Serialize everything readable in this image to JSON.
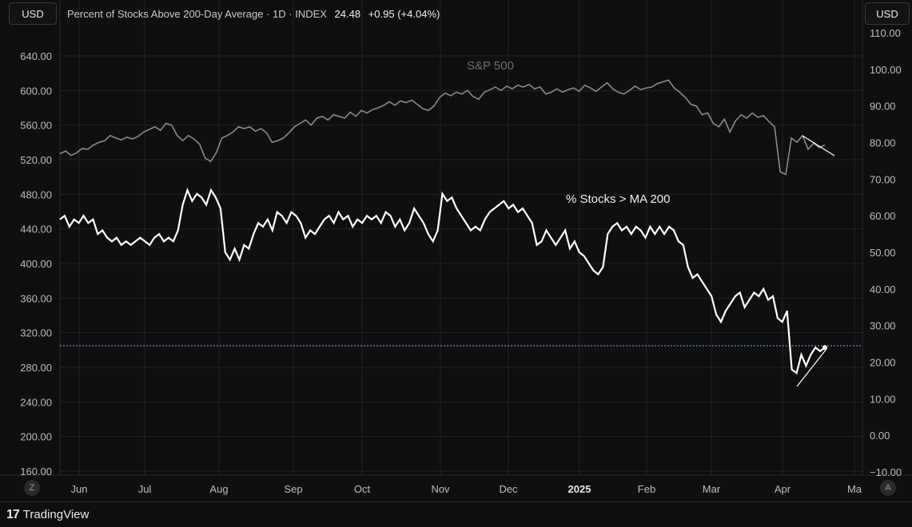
{
  "header": {
    "title": "Percent of Stocks Above 200-Day Average · 1D · INDEX",
    "value": "24.48",
    "change": "+0.95 (+4.04%)",
    "currency_left": "USD",
    "currency_right": "USD"
  },
  "controls": {
    "z_label": "Z",
    "a_label": "A"
  },
  "footer": {
    "brand": "TradingView",
    "brand_mark": "17"
  },
  "colors": {
    "background": "#0f0f0f",
    "grid": "#262626",
    "pct_line": "#ffffff",
    "spx_line": "#8a8a8a",
    "ref_line": "#5fb8d6"
  },
  "chart_data": {
    "type": "line",
    "x_labels": [
      "Jun",
      "Jul",
      "Aug",
      "Sep",
      "Oct",
      "Nov",
      "Dec",
      "2025",
      "Feb",
      "Mar",
      "Apr",
      "Ma"
    ],
    "left_axis": {
      "ticks": [
        "640.00",
        "600.00",
        "560.00",
        "520.00",
        "480.00",
        "440.00",
        "400.00",
        "360.00",
        "320.00",
        "280.00",
        "240.00",
        "200.00",
        "160.00"
      ],
      "range": [
        160,
        660
      ]
    },
    "right_axis": {
      "ticks": [
        "110.00",
        "100.00",
        "90.00",
        "80.00",
        "70.00",
        "60.00",
        "50.00",
        "40.00",
        "30.00",
        "20.00",
        "10.00",
        "0.00",
        "−10.00"
      ],
      "range": [
        -10,
        115
      ]
    },
    "series": [
      {
        "name": "S&P 500",
        "axis": "left",
        "values": [
          527,
          530,
          525,
          528,
          533,
          532,
          537,
          540,
          542,
          548,
          545,
          543,
          546,
          544,
          547,
          552,
          555,
          558,
          554,
          562,
          560,
          548,
          542,
          548,
          544,
          538,
          522,
          518,
          528,
          545,
          548,
          552,
          558,
          556,
          558,
          553,
          556,
          551,
          540,
          542,
          545,
          551,
          558,
          562,
          566,
          560,
          568,
          570,
          566,
          572,
          570,
          568,
          575,
          570,
          577,
          574,
          578,
          580,
          583,
          587,
          583,
          588,
          586,
          589,
          584,
          579,
          577,
          582,
          592,
          597,
          594,
          598,
          596,
          600,
          593,
          590,
          598,
          601,
          604,
          600,
          605,
          602,
          606,
          604,
          607,
          602,
          604,
          596,
          598,
          602,
          598,
          601,
          603,
          599,
          606,
          603,
          599,
          604,
          609,
          602,
          598,
          596,
          600,
          605,
          601,
          603,
          604,
          608,
          610,
          612,
          603,
          598,
          592,
          584,
          582,
          572,
          574,
          562,
          558,
          567,
          552,
          565,
          572,
          568,
          574,
          569,
          571,
          564,
          558,
          506,
          503,
          545,
          540,
          548,
          532,
          539,
          534,
          537
        ],
        "label": "S&P 500"
      },
      {
        "name": "% Stocks > MA 200",
        "axis": "right",
        "values": [
          59,
          60,
          57,
          59,
          58,
          60,
          58,
          59,
          55,
          56,
          54,
          53,
          54,
          52,
          53,
          52,
          53,
          54,
          53,
          52,
          54,
          55,
          53,
          54,
          53,
          56,
          63,
          67,
          64,
          66,
          65,
          63,
          67,
          65,
          62,
          50,
          48,
          51,
          48,
          52,
          51,
          55,
          58,
          57,
          59,
          56,
          61,
          60,
          58,
          61,
          60,
          58,
          54,
          56,
          55,
          57,
          59,
          60,
          58,
          61,
          59,
          60,
          57,
          59,
          58,
          60,
          59,
          60,
          58,
          61,
          60,
          57,
          59,
          56,
          58,
          62,
          60,
          58,
          55,
          53,
          56,
          66,
          64,
          65,
          62,
          60,
          58,
          56,
          57,
          56,
          59,
          61,
          62,
          63,
          64,
          62,
          63,
          61,
          62,
          60,
          58,
          52,
          53,
          56,
          54,
          52,
          54,
          56,
          51,
          53,
          50,
          49,
          47,
          45,
          44,
          46,
          55,
          57,
          58,
          56,
          57,
          55,
          57,
          56,
          54,
          57,
          55,
          57,
          55,
          57,
          56,
          53,
          52,
          46,
          43,
          44,
          42,
          40,
          38,
          33,
          31,
          34,
          36,
          38,
          39,
          35,
          37,
          39,
          38,
          40,
          37,
          38,
          32,
          31,
          34,
          18,
          17,
          22,
          19,
          22,
          24,
          23,
          24
        ]
      }
    ],
    "annotations": [
      "S&P 500",
      "% Stocks > MA 200"
    ],
    "reference_value": 24.48,
    "grid": true
  }
}
